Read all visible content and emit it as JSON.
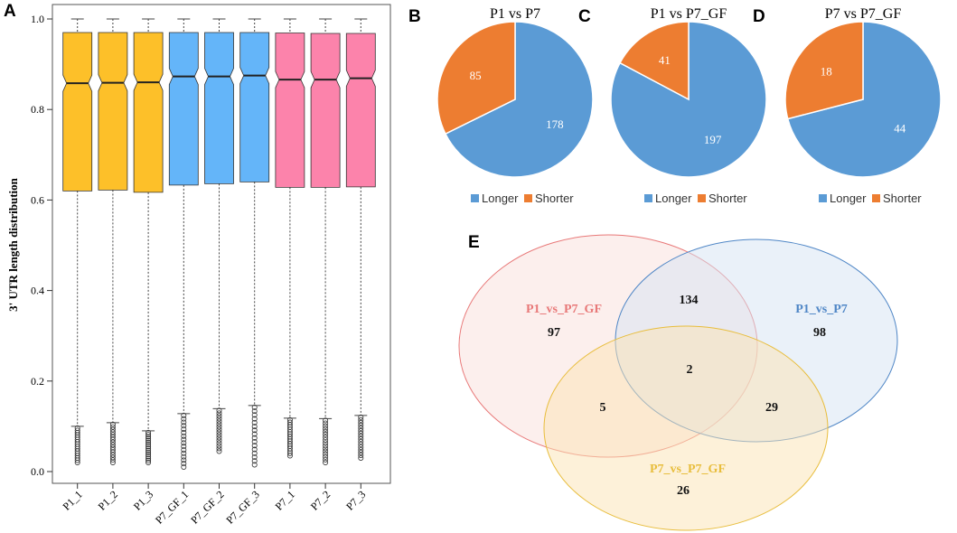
{
  "colors": {
    "gold": "#FDC029",
    "blue_box": "#64B5F9",
    "pink": "#FC83AB",
    "pie_blue": "#5B9BD5",
    "pie_orange": "#ED7D31",
    "venn_red": "#E87878",
    "venn_blue": "#4F86C6",
    "venn_yellow": "#E8BD3C"
  },
  "panel_labels": {
    "a": "A",
    "b": "B",
    "c": "C",
    "d": "D",
    "e": "E"
  },
  "chart_data": [
    {
      "type": "box",
      "panel": "A",
      "ylabel": "3' UTR length distribution",
      "ylim": [
        0,
        1.0
      ],
      "yticks": [
        "0.0",
        "0.2",
        "0.4",
        "0.6",
        "0.8",
        "1.0"
      ],
      "categories": [
        "P1_1",
        "P1_2",
        "P1_3",
        "P7_GF_1",
        "P7_GF_2",
        "P7_GF_3",
        "P7_1",
        "P7_2",
        "P7_3"
      ],
      "groups": [
        "gold",
        "gold",
        "gold",
        "blue_box",
        "blue_box",
        "blue_box",
        "pink",
        "pink",
        "pink"
      ],
      "q1": [
        0.62,
        0.622,
        0.617,
        0.633,
        0.636,
        0.64,
        0.628,
        0.628,
        0.629
      ],
      "median": [
        0.858,
        0.859,
        0.86,
        0.873,
        0.873,
        0.875,
        0.866,
        0.866,
        0.869
      ],
      "q3": [
        0.97,
        0.97,
        0.97,
        0.97,
        0.97,
        0.97,
        0.969,
        0.968,
        0.968
      ],
      "whisker_low": [
        0.1,
        0.108,
        0.09,
        0.128,
        0.139,
        0.146,
        0.118,
        0.117,
        0.124
      ],
      "whisker_high": [
        1.0,
        1.0,
        1.0,
        1.0,
        1.0,
        1.0,
        1.0,
        1.0,
        1.0
      ],
      "outlier_min": [
        0.02,
        0.02,
        0.02,
        0.01,
        0.045,
        0.015,
        0.035,
        0.02,
        0.03
      ]
    },
    {
      "type": "pie",
      "panel": "B",
      "title": "P1 vs P7",
      "labels": [
        "Longer",
        "Shorter"
      ],
      "values": [
        178,
        85
      ]
    },
    {
      "type": "pie",
      "panel": "C",
      "title": "P1 vs P7_GF",
      "labels": [
        "Longer",
        "Shorter"
      ],
      "values": [
        197,
        41
      ]
    },
    {
      "type": "pie",
      "panel": "D",
      "title": "P7 vs P7_GF",
      "labels": [
        "Longer",
        "Shorter"
      ],
      "values": [
        44,
        18
      ]
    },
    {
      "type": "venn",
      "panel": "E",
      "sets": [
        "P1_vs_P7_GF",
        "P1_vs_P7",
        "P7_vs_P7_GF"
      ],
      "regions": {
        "only_p1_p7gf": 97,
        "only_p1_p7": 98,
        "only_p7_p7gf": 26,
        "p1p7gf_p1p7": 134,
        "p1p7gf_p7p7gf": 5,
        "p1p7_p7p7gf": 29,
        "all_three": 2
      }
    }
  ]
}
